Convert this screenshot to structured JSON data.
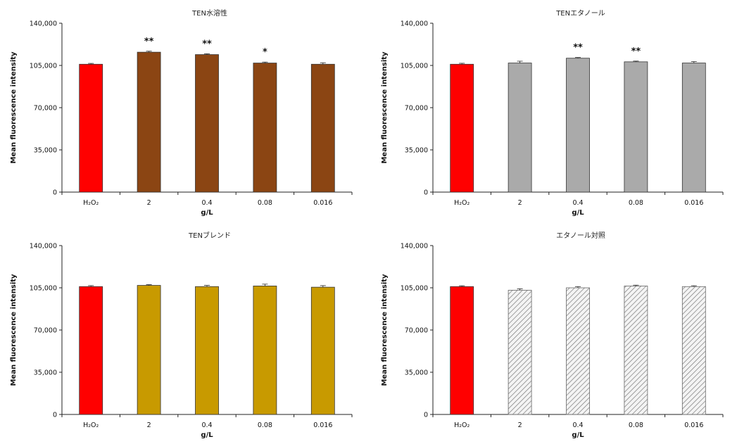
{
  "chart_data": [
    {
      "type": "bar",
      "title": "TEN水溶性",
      "ylabel": "Mean fluorescence intensity",
      "xlabel": "g/L",
      "ylim": [
        0,
        140000
      ],
      "yticks": [
        "0",
        "35,000",
        "70,000",
        "105,000",
        "140,000"
      ],
      "categories": [
        "H₂O₂",
        "2",
        "0.4",
        "0.08",
        "0.016"
      ],
      "values": [
        106000,
        116000,
        114000,
        107000,
        106000
      ],
      "errors": [
        700,
        800,
        700,
        800,
        1200
      ],
      "significance": [
        "",
        "**",
        "**",
        "*",
        ""
      ],
      "colors": [
        "#ff0000",
        "#8b4513",
        "#8b4513",
        "#8b4513",
        "#8b4513"
      ],
      "patterns": [
        "solid",
        "solid",
        "solid",
        "solid",
        "solid"
      ]
    },
    {
      "type": "bar",
      "title": "TENエタノール",
      "ylabel": "Mean fluorescence intensity",
      "xlabel": "g/L",
      "ylim": [
        0,
        140000
      ],
      "yticks": [
        "0",
        "35,000",
        "70,000",
        "105,000",
        "140,000"
      ],
      "categories": [
        "H₂O₂",
        "2",
        "0.4",
        "0.08",
        "0.016"
      ],
      "values": [
        106000,
        107000,
        111000,
        108000,
        107000
      ],
      "errors": [
        800,
        1500,
        600,
        600,
        1200
      ],
      "significance": [
        "",
        "",
        "**",
        "**",
        ""
      ],
      "colors": [
        "#ff0000",
        "#aaaaaa",
        "#aaaaaa",
        "#aaaaaa",
        "#aaaaaa"
      ],
      "patterns": [
        "solid",
        "solid",
        "solid",
        "solid",
        "solid"
      ]
    },
    {
      "type": "bar",
      "title": "TENブレンド",
      "ylabel": "Mean fluorescence intensity",
      "xlabel": "g/L",
      "ylim": [
        0,
        140000
      ],
      "yticks": [
        "0",
        "35,000",
        "70,000",
        "105,000",
        "140,000"
      ],
      "categories": [
        "H₂O₂",
        "2",
        "0.4",
        "0.08",
        "0.016"
      ],
      "values": [
        106000,
        107000,
        106000,
        106500,
        105500
      ],
      "errors": [
        800,
        600,
        1000,
        1500,
        1300
      ],
      "significance": [
        "",
        "",
        "",
        "",
        ""
      ],
      "colors": [
        "#ff0000",
        "#c89a00",
        "#c89a00",
        "#c89a00",
        "#c89a00"
      ],
      "patterns": [
        "solid",
        "solid",
        "solid",
        "solid",
        "solid"
      ]
    },
    {
      "type": "bar",
      "title": "エタノール対照",
      "ylabel": "Mean fluorescence intensity",
      "xlabel": "g/L",
      "ylim": [
        0,
        140000
      ],
      "yticks": [
        "0",
        "35,000",
        "70,000",
        "105,000",
        "140,000"
      ],
      "categories": [
        "H₂O₂",
        "2",
        "0.4",
        "0.08",
        "0.016"
      ],
      "values": [
        106000,
        103000,
        105000,
        106500,
        106000
      ],
      "errors": [
        700,
        1200,
        1000,
        700,
        700
      ],
      "significance": [
        "",
        "",
        "",
        "",
        ""
      ],
      "colors": [
        "#ff0000",
        "#777777",
        "#777777",
        "#777777",
        "#777777"
      ],
      "patterns": [
        "solid",
        "hatch",
        "hatch",
        "hatch",
        "hatch"
      ]
    }
  ]
}
